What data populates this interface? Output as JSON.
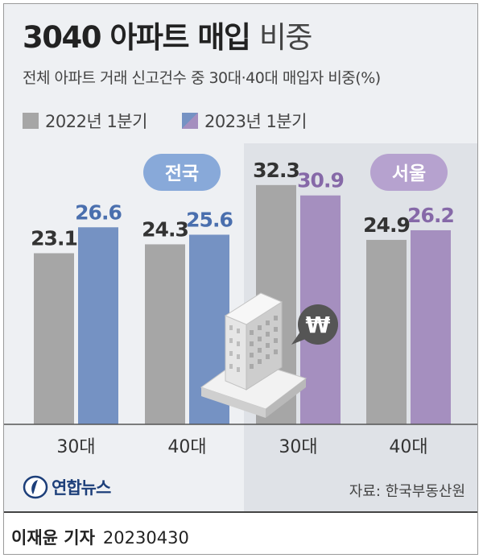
{
  "title_bold": "3040 아파트 매입",
  "title_light": "비중",
  "subtitle": "전체 아파트 거래 신고건수 중 30대·40대 매입자 비중(%)",
  "legend": [
    {
      "label": "2022년 1분기",
      "color": "#a6a6a6"
    },
    {
      "label": "2023년 1분기",
      "color_national": "#7592c3",
      "color_seoul": "#a58fbf"
    }
  ],
  "chart_data": [
    {
      "type": "bar",
      "region": "전국",
      "categories": [
        "30대",
        "40대"
      ],
      "series": [
        {
          "name": "2022년 1분기",
          "values": [
            23.1,
            24.3
          ]
        },
        {
          "name": "2023년 1분기",
          "values": [
            26.6,
            25.6
          ]
        }
      ]
    },
    {
      "type": "bar",
      "region": "서울",
      "categories": [
        "30대",
        "40대"
      ],
      "series": [
        {
          "name": "2022년 1분기",
          "values": [
            32.3,
            24.9
          ]
        },
        {
          "name": "2023년 1분기",
          "values": [
            30.9,
            26.2
          ]
        }
      ]
    }
  ],
  "colors": {
    "gray": "#a6a6a6",
    "blue": "#7592c3",
    "purple": "#a58fbf",
    "badge_blue": "#88a9d9",
    "badge_purple": "#b6a2cf"
  },
  "won_symbol": "₩",
  "logo_text": "연합뉴스",
  "source": "자료: 한국부동산원",
  "reporter": "이재윤 기자",
  "date": "20230430"
}
